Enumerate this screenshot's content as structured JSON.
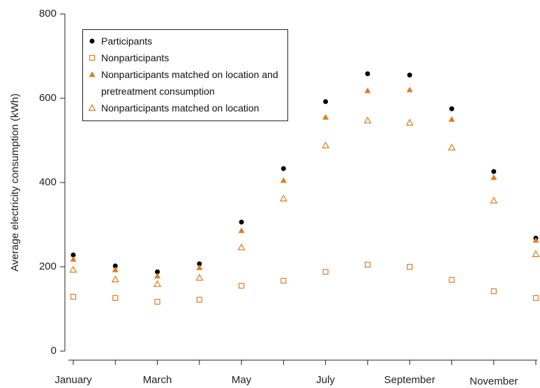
{
  "chart_data": {
    "type": "scatter",
    "y_label": "Average electricity consumption (kWh)",
    "categories": [
      "January",
      null,
      "March",
      null,
      "May",
      null,
      "July",
      null,
      "September",
      null,
      "November",
      null
    ],
    "ylim": [
      0,
      800
    ],
    "yticks": [
      0,
      200,
      400,
      600,
      800
    ],
    "series": [
      {
        "name": "Participants",
        "color": "#000000",
        "marker": "filled-circle",
        "values": [
          228,
          202,
          188,
          207,
          306,
          433,
          592,
          658,
          655,
          575,
          426,
          268
        ]
      },
      {
        "name": "Nonparticipants",
        "color": "#e07b20",
        "marker": "open-square",
        "values": [
          129,
          126,
          117,
          122,
          155,
          167,
          188,
          205,
          200,
          169,
          142,
          126
        ]
      },
      {
        "name": "Nonparticipants matched on location and pretreatment consumption",
        "color": "#e07b20",
        "marker": "filled-triangle",
        "values": [
          218,
          193,
          178,
          198,
          286,
          405,
          555,
          618,
          620,
          550,
          412,
          263
        ]
      },
      {
        "name": "Nonparticipants matched on location",
        "color": "#e07b20",
        "marker": "open-triangle",
        "values": [
          193,
          170,
          159,
          174,
          246,
          362,
          488,
          547,
          542,
          483,
          357,
          230
        ]
      }
    ]
  }
}
